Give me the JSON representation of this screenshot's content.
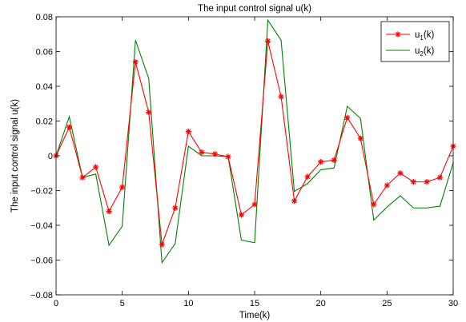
{
  "chart_data": {
    "type": "line",
    "title": "The input control signal u(k)",
    "xlabel": "Time(k)",
    "ylabel": "The input control signal u(k)",
    "xlim": [
      0,
      30
    ],
    "ylim": [
      -0.08,
      0.08
    ],
    "xticks": [
      0,
      5,
      10,
      15,
      20,
      25,
      30
    ],
    "yticks": [
      -0.08,
      -0.06,
      -0.04,
      -0.02,
      0,
      0.02,
      0.04,
      0.06,
      0.08
    ],
    "xtick_labels": [
      "0",
      "5",
      "10",
      "15",
      "20",
      "25",
      "30"
    ],
    "ytick_labels": [
      "−0.08",
      "−0.06",
      "−0.04",
      "−0.02",
      "0",
      "0.02",
      "0.04",
      "0.06",
      "0.08"
    ],
    "grid": false,
    "legend_position": "top-right",
    "x": [
      0,
      1,
      2,
      3,
      4,
      5,
      6,
      7,
      8,
      9,
      10,
      11,
      12,
      13,
      14,
      15,
      16,
      17,
      18,
      19,
      20,
      21,
      22,
      23,
      24,
      25,
      26,
      27,
      28,
      29,
      30
    ],
    "series": [
      {
        "name": "u1(k)",
        "legend_main": "u",
        "legend_sub": "1",
        "legend_rest": "(k)",
        "color": "#ff0000",
        "marker": "asterisk",
        "values": [
          0,
          0.0165,
          -0.0125,
          -0.0065,
          -0.032,
          -0.018,
          0.054,
          0.025,
          -0.051,
          -0.03,
          0.014,
          0.002,
          0.001,
          -0.0005,
          -0.034,
          -0.028,
          0.066,
          0.034,
          -0.026,
          -0.012,
          -0.0035,
          -0.0025,
          0.022,
          0.01,
          -0.028,
          -0.017,
          -0.01,
          -0.015,
          -0.015,
          -0.0125,
          0.0055
        ]
      },
      {
        "name": "u2(k)",
        "legend_main": "u",
        "legend_sub": "2",
        "legend_rest": "(k)",
        "color": "#008000",
        "marker": "none",
        "values": [
          0,
          0.0225,
          -0.0125,
          -0.0105,
          -0.0515,
          -0.0405,
          0.0665,
          0.0445,
          -0.0615,
          -0.0505,
          0.0055,
          0,
          0,
          -0.0005,
          -0.0485,
          -0.05,
          0.078,
          0.0665,
          -0.0205,
          -0.016,
          -0.008,
          -0.007,
          0.0285,
          0.0215,
          -0.037,
          -0.0295,
          -0.023,
          -0.03,
          -0.03,
          -0.029,
          -0.004
        ]
      }
    ]
  }
}
